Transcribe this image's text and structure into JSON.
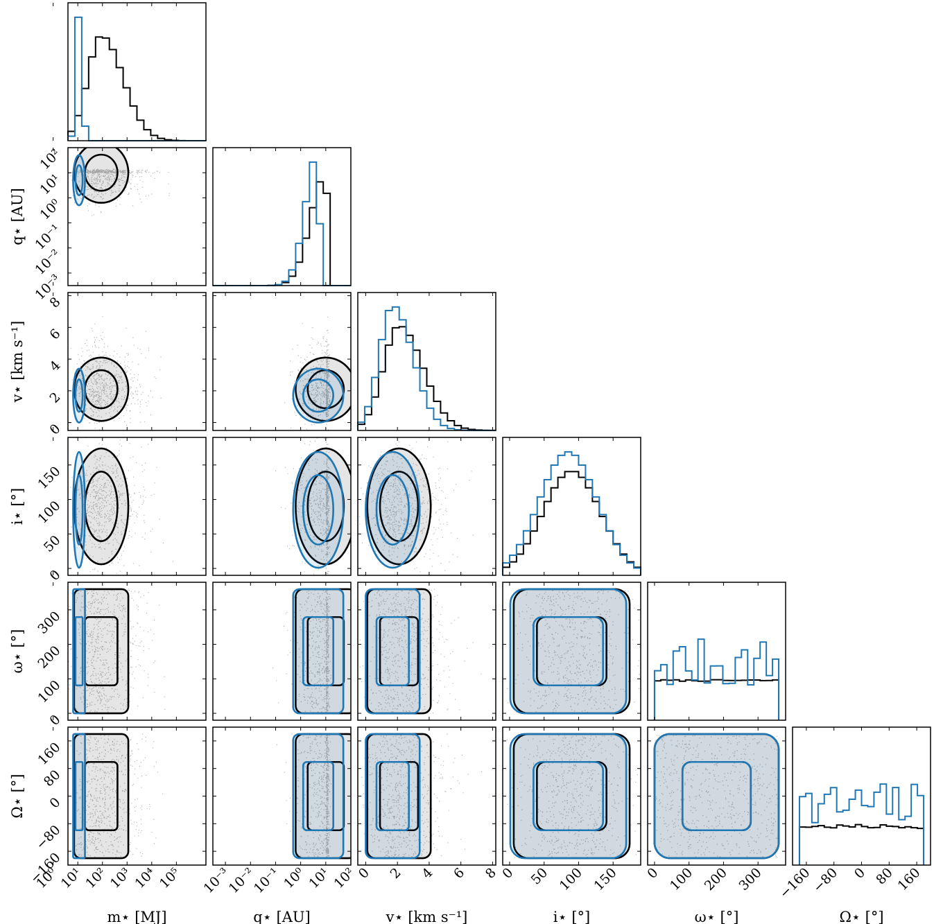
{
  "chart_data": {
    "type": "corner",
    "colors": {
      "series_a": "#000000",
      "series_b": "#1f77b4"
    },
    "series": [
      {
        "color": "#000000"
      },
      {
        "color": "#1f77b4"
      }
    ],
    "params": [
      {
        "key": "m",
        "label": "m⋆ [MJ]",
        "scale": "log",
        "range": [
          0.6,
          6.2
        ],
        "tick_values": [
          0,
          1,
          2,
          3,
          4,
          5
        ],
        "tick_labels": [
          "10⁰",
          "10¹",
          "10²",
          "10³",
          "10⁴",
          "10⁵"
        ],
        "dists": [
          {
            "center": 1.95,
            "sd": 0.55,
            "skew": 0.6
          },
          {
            "center": 1.05,
            "sd": 0.12,
            "skew": 0
          }
        ]
      },
      {
        "key": "q",
        "label": "q⋆ [AU]",
        "scale": "log",
        "range": [
          -3.5,
          2.0
        ],
        "tick_values": [
          -3,
          -2,
          -1,
          0,
          1,
          2
        ],
        "tick_labels": [
          "10⁻³",
          "10⁻²",
          "10⁻¹",
          "10⁰",
          "10¹",
          "10²"
        ],
        "dists": [
          {
            "center": 1.0,
            "sd": 0.6,
            "skew": -0.9
          },
          {
            "center": 0.7,
            "sd": 0.5,
            "skew": -0.9
          }
        ]
      },
      {
        "key": "v",
        "label": "v⋆ [km s⁻¹]",
        "scale": "linear",
        "range": [
          -0.5,
          8.2
        ],
        "tick_values": [
          0,
          2,
          4,
          6,
          8
        ],
        "tick_labels": [
          "0",
          "2",
          "4",
          "6",
          "8"
        ],
        "dists": [
          {
            "center": 2.1,
            "sd": 1.0,
            "skew": 0.5
          },
          {
            "center": 1.7,
            "sd": 0.85,
            "skew": 0.5
          }
        ]
      },
      {
        "key": "i",
        "label": "i⋆ [°]",
        "scale": "linear",
        "range": [
          -10,
          190
        ],
        "tick_values": [
          0,
          50,
          100,
          150
        ],
        "tick_labels": [
          "0",
          "50",
          "100",
          "150"
        ],
        "dists": [
          {
            "center": 90,
            "sd": 42,
            "skew": 0
          },
          {
            "center": 85,
            "sd": 42,
            "skew": 0
          }
        ]
      },
      {
        "key": "w",
        "label": "ω⋆ [°]",
        "scale": "linear",
        "range": [
          -20,
          380
        ],
        "tick_values": [
          0,
          100,
          200,
          300
        ],
        "tick_labels": [
          "0",
          "100",
          "200",
          "300"
        ],
        "dists": [
          {
            "uniform": [
              0,
              360
            ],
            "noise": 0.02
          },
          {
            "uniform": [
              0,
              360
            ],
            "noise": 0.45
          }
        ]
      },
      {
        "key": "O",
        "label": "Ω⋆ [°]",
        "scale": "linear",
        "range": [
          -200,
          200
        ],
        "tick_values": [
          -160,
          -80,
          0,
          80,
          160
        ],
        "tick_labels": [
          "−160",
          "−80",
          "0",
          "80",
          "160"
        ],
        "dists": [
          {
            "uniform": [
              -180,
              180
            ],
            "noise": 0.05
          },
          {
            "uniform": [
              -180,
              180
            ],
            "noise": 0.4
          }
        ]
      }
    ]
  }
}
